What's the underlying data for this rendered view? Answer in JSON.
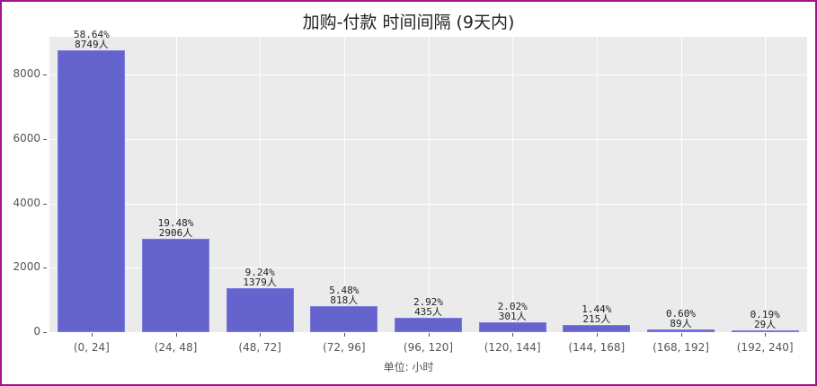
{
  "chart_data": {
    "type": "bar",
    "title": "加购-付款 时间间隔 (9天内)",
    "xlabel": "单位: 小时",
    "ylabel": "",
    "categories": [
      "(0, 24]",
      "(24, 48]",
      "(48, 72]",
      "(72, 96]",
      "(96, 120]",
      "(120, 144]",
      "(144, 168]",
      "(168, 192]",
      "(192, 240]"
    ],
    "values": [
      8749,
      2906,
      1379,
      818,
      435,
      301,
      215,
      89,
      29
    ],
    "percent_labels": [
      "58.64%",
      "19.48%",
      "9.24%",
      "5.48%",
      "2.92%",
      "2.02%",
      "1.44%",
      "0.60%",
      "0.19%"
    ],
    "count_labels": [
      "8749人",
      "2906人",
      "1379人",
      "818人",
      "435人",
      "301人",
      "215人",
      "89人",
      "29人"
    ],
    "yticks": [
      0,
      2000,
      4000,
      6000,
      8000
    ],
    "ylim": [
      0,
      9180
    ],
    "grid": true,
    "bar_color": "#6464cc",
    "plot_background": "#ebebeb",
    "frame_color": "#a0148c"
  }
}
